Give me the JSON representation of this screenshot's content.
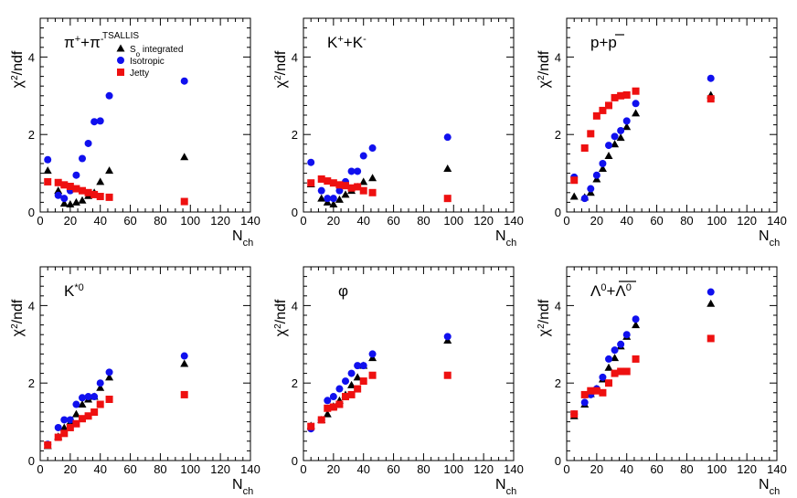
{
  "figure": {
    "colors": {
      "s0": "#000000",
      "isotropic": "#1010ee",
      "jetty": "#ee1010"
    },
    "legend": {
      "title": "TSALLIS",
      "entries": [
        {
          "key": "s0",
          "label_main": "S",
          "label_sub": "o",
          "label_rest": " integrated",
          "marker": "triangle"
        },
        {
          "key": "isotropic",
          "label_main": "Isotropic",
          "label_sub": "",
          "label_rest": "",
          "marker": "circle"
        },
        {
          "key": "jetty",
          "label_main": "Jetty",
          "label_sub": "",
          "label_rest": "",
          "marker": "square"
        }
      ]
    },
    "axis_text": {
      "x_main": "N",
      "x_sub": "ch",
      "y_chi": "χ",
      "y_sup": "2",
      "y_rest": "/ndf"
    }
  },
  "chart_data": [
    {
      "type": "scatter",
      "panel": "pi",
      "title": "π⁺+π⁻",
      "xlabel": "Nch",
      "ylabel": "χ²/ndf",
      "xlim": [
        0,
        140
      ],
      "ylim": [
        0,
        5
      ],
      "x_ticks": [
        0,
        20,
        40,
        60,
        80,
        100,
        120,
        140
      ],
      "y_ticks": [
        0,
        2,
        4
      ],
      "series": [
        {
          "name": "So integrated",
          "key": "s0",
          "x": [
            5,
            12,
            16,
            20,
            24,
            28,
            32,
            36,
            40,
            46,
            96
          ],
          "y": [
            1.07,
            0.55,
            0.22,
            0.2,
            0.25,
            0.3,
            0.42,
            0.5,
            0.78,
            1.07,
            1.42
          ]
        },
        {
          "name": "Isotropic",
          "key": "isotropic",
          "x": [
            5,
            12,
            16,
            20,
            24,
            28,
            32,
            36,
            40,
            46,
            96
          ],
          "y": [
            1.35,
            0.43,
            0.35,
            0.55,
            0.95,
            1.38,
            1.77,
            2.33,
            2.35,
            3.0,
            3.38
          ]
        },
        {
          "name": "Jetty",
          "key": "jetty",
          "x": [
            5,
            12,
            16,
            20,
            24,
            28,
            32,
            36,
            40,
            46,
            96
          ],
          "y": [
            0.78,
            0.76,
            0.7,
            0.66,
            0.6,
            0.55,
            0.5,
            0.45,
            0.4,
            0.38,
            0.27
          ]
        }
      ]
    },
    {
      "type": "scatter",
      "panel": "kaon",
      "title": "K⁺+K⁻",
      "xlabel": "Nch",
      "ylabel": "χ²/ndf",
      "xlim": [
        0,
        140
      ],
      "ylim": [
        0,
        5
      ],
      "x_ticks": [
        0,
        20,
        40,
        60,
        80,
        100,
        120,
        140
      ],
      "y_ticks": [
        0,
        2,
        4
      ],
      "series": [
        {
          "name": "So integrated",
          "key": "s0",
          "x": [
            5,
            12,
            16,
            20,
            24,
            28,
            32,
            36,
            40,
            46,
            96
          ],
          "y": [
            0.72,
            0.35,
            0.25,
            0.2,
            0.32,
            0.45,
            0.55,
            0.65,
            0.78,
            0.88,
            1.12
          ]
        },
        {
          "name": "Isotropic",
          "key": "isotropic",
          "x": [
            5,
            12,
            16,
            20,
            24,
            28,
            32,
            36,
            40,
            46,
            96
          ],
          "y": [
            1.28,
            0.55,
            0.35,
            0.35,
            0.55,
            0.78,
            1.05,
            1.05,
            1.45,
            1.65,
            1.93
          ]
        },
        {
          "name": "Jetty",
          "key": "jetty",
          "x": [
            5,
            12,
            16,
            20,
            24,
            28,
            32,
            36,
            40,
            46,
            96
          ],
          "y": [
            0.75,
            0.85,
            0.8,
            0.75,
            0.7,
            0.68,
            0.62,
            0.65,
            0.55,
            0.5,
            0.35
          ]
        }
      ]
    },
    {
      "type": "scatter",
      "panel": "proton",
      "title": "p+p̄",
      "xlabel": "Nch",
      "ylabel": "χ²/ndf",
      "xlim": [
        0,
        140
      ],
      "ylim": [
        0,
        5
      ],
      "x_ticks": [
        0,
        20,
        40,
        60,
        80,
        100,
        120,
        140
      ],
      "y_ticks": [
        0,
        2,
        4
      ],
      "series": [
        {
          "name": "So integrated",
          "key": "s0",
          "x": [
            5,
            12,
            16,
            20,
            24,
            28,
            32,
            36,
            40,
            46,
            96
          ],
          "y": [
            0.4,
            0.38,
            0.5,
            0.85,
            1.12,
            1.45,
            1.75,
            1.92,
            2.2,
            2.55,
            3.02
          ]
        },
        {
          "name": "Isotropic",
          "key": "isotropic",
          "x": [
            5,
            12,
            16,
            20,
            24,
            28,
            32,
            36,
            40,
            46,
            96
          ],
          "y": [
            0.9,
            0.35,
            0.6,
            0.95,
            1.25,
            1.72,
            1.95,
            2.1,
            2.35,
            2.8,
            3.45
          ]
        },
        {
          "name": "Jetty",
          "key": "jetty",
          "x": [
            5,
            12,
            16,
            20,
            24,
            28,
            32,
            36,
            40,
            46,
            96
          ],
          "y": [
            0.82,
            1.65,
            2.02,
            2.48,
            2.62,
            2.75,
            2.95,
            3.0,
            3.02,
            3.12,
            2.92
          ]
        }
      ]
    },
    {
      "type": "scatter",
      "panel": "kstar",
      "title": "K*⁰",
      "xlabel": "Nch",
      "ylabel": "χ²/ndf",
      "xlim": [
        0,
        140
      ],
      "ylim": [
        0,
        5
      ],
      "x_ticks": [
        0,
        20,
        40,
        60,
        80,
        100,
        120,
        140
      ],
      "y_ticks": [
        0,
        2,
        4
      ],
      "series": [
        {
          "name": "So integrated",
          "key": "s0",
          "x": [
            5,
            12,
            16,
            20,
            24,
            28,
            32,
            36,
            40,
            46,
            96
          ],
          "y": [
            0.38,
            0.62,
            0.85,
            1.0,
            1.2,
            1.45,
            1.58,
            1.65,
            1.88,
            2.15,
            2.5
          ]
        },
        {
          "name": "Isotropic",
          "key": "isotropic",
          "x": [
            5,
            12,
            16,
            20,
            24,
            28,
            32,
            36,
            40,
            46,
            96
          ],
          "y": [
            0.42,
            0.85,
            1.05,
            1.05,
            1.45,
            1.62,
            1.65,
            1.65,
            2.0,
            2.28,
            2.7
          ]
        },
        {
          "name": "Jetty",
          "key": "jetty",
          "x": [
            5,
            12,
            16,
            20,
            24,
            28,
            32,
            36,
            40,
            46,
            96
          ],
          "y": [
            0.4,
            0.6,
            0.7,
            0.85,
            0.95,
            1.08,
            1.15,
            1.25,
            1.45,
            1.58,
            1.7
          ]
        }
      ]
    },
    {
      "type": "scatter",
      "panel": "phi",
      "title": "φ",
      "xlabel": "Nch",
      "ylabel": "χ²/ndf",
      "xlim": [
        0,
        140
      ],
      "ylim": [
        0,
        5
      ],
      "x_ticks": [
        0,
        20,
        40,
        60,
        80,
        100,
        120,
        140
      ],
      "y_ticks": [
        0,
        2,
        4
      ],
      "series": [
        {
          "name": "So integrated",
          "key": "s0",
          "x": [
            5,
            12,
            16,
            20,
            24,
            28,
            32,
            36,
            40,
            46,
            96
          ],
          "y": [
            0.9,
            1.05,
            1.2,
            1.4,
            1.55,
            1.7,
            1.95,
            2.15,
            2.45,
            2.65,
            3.1
          ]
        },
        {
          "name": "Isotropic",
          "key": "isotropic",
          "x": [
            5,
            12,
            16,
            20,
            24,
            28,
            32,
            36,
            40,
            46,
            96
          ],
          "y": [
            0.82,
            1.05,
            1.55,
            1.65,
            1.85,
            2.05,
            2.25,
            2.45,
            2.45,
            2.75,
            3.2
          ]
        },
        {
          "name": "Jetty",
          "key": "jetty",
          "x": [
            5,
            12,
            16,
            20,
            24,
            28,
            32,
            36,
            40,
            46,
            96
          ],
          "y": [
            0.88,
            1.05,
            1.35,
            1.38,
            1.45,
            1.65,
            1.7,
            1.85,
            2.05,
            2.2,
            2.2
          ]
        }
      ]
    },
    {
      "type": "scatter",
      "panel": "lambda",
      "title": "Λ⁰+Λ̄⁰",
      "xlabel": "Nch",
      "ylabel": "χ²/ndf",
      "xlim": [
        0,
        140
      ],
      "ylim": [
        0,
        5
      ],
      "x_ticks": [
        0,
        20,
        40,
        60,
        80,
        100,
        120,
        140
      ],
      "y_ticks": [
        0,
        2,
        4
      ],
      "series": [
        {
          "name": "So integrated",
          "key": "s0",
          "x": [
            5,
            12,
            16,
            20,
            24,
            28,
            32,
            36,
            40,
            46,
            96
          ],
          "y": [
            1.15,
            1.45,
            1.72,
            1.85,
            2.1,
            2.4,
            2.65,
            2.95,
            3.2,
            3.5,
            4.05
          ]
        },
        {
          "name": "Isotropic",
          "key": "isotropic",
          "x": [
            5,
            12,
            16,
            20,
            24,
            28,
            32,
            36,
            40,
            46,
            96
          ],
          "y": [
            1.2,
            1.5,
            1.7,
            1.85,
            2.15,
            2.62,
            2.85,
            3.0,
            3.25,
            3.65,
            4.35
          ]
        },
        {
          "name": "Jetty",
          "key": "jetty",
          "x": [
            5,
            12,
            16,
            20,
            24,
            28,
            32,
            36,
            40,
            46,
            96
          ],
          "y": [
            1.2,
            1.7,
            1.8,
            1.8,
            1.75,
            2.0,
            2.25,
            2.3,
            2.3,
            2.62,
            3.15
          ]
        }
      ]
    }
  ]
}
